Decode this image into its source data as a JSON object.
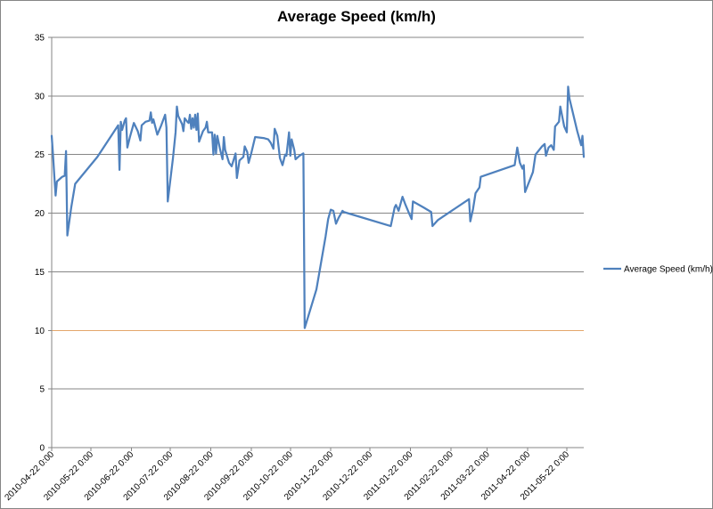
{
  "chart_data": {
    "type": "line",
    "title": "Average Speed (km/h)",
    "xlabel": "",
    "ylabel": "",
    "ylim": [
      0,
      35
    ],
    "yticks": [
      0,
      5,
      10,
      15,
      20,
      25,
      30,
      35
    ],
    "xlim": [
      "2010-04-22",
      "2011-06-04"
    ],
    "xtick_labels": [
      "2010-04-22 0:00",
      "2010-05-22 0:00",
      "2010-06-22 0:00",
      "2010-07-22 0:00",
      "2010-08-22 0:00",
      "2010-09-22 0:00",
      "2010-10-22 0:00",
      "2010-11-22 0:00",
      "2010-12-22 0:00",
      "2011-01-22 0:00",
      "2011-02-22 0:00",
      "2011-03-22 0:00",
      "2011-04-22 0:00",
      "2011-05-22 0:00"
    ],
    "xtick_dates": [
      "2010-04-22",
      "2010-05-22",
      "2010-06-22",
      "2010-07-22",
      "2010-08-22",
      "2010-09-22",
      "2010-10-22",
      "2010-11-22",
      "2010-12-22",
      "2011-01-22",
      "2011-02-22",
      "2011-03-22",
      "2011-04-22",
      "2011-05-22"
    ],
    "highlight_line": {
      "y": 10,
      "color": "#e4a66b"
    },
    "grid": true,
    "legend": "right",
    "series": [
      {
        "name": "Average Speed (km/h)",
        "color": "#4f81bd",
        "points": [
          [
            "2010-04-22",
            26.6
          ],
          [
            "2010-04-23",
            25.0
          ],
          [
            "2010-04-24",
            23.2
          ],
          [
            "2010-04-25",
            21.5
          ],
          [
            "2010-04-26",
            22.7
          ],
          [
            "2010-04-28",
            22.9
          ],
          [
            "2010-04-30",
            23.1
          ],
          [
            "2010-05-02",
            23.2
          ],
          [
            "2010-05-03",
            25.3
          ],
          [
            "2010-05-04",
            18.1
          ],
          [
            "2010-05-07",
            20.5
          ],
          [
            "2010-05-10",
            22.5
          ],
          [
            "2010-05-27",
            24.8
          ],
          [
            "2010-06-12",
            27.5
          ],
          [
            "2010-06-13",
            23.7
          ],
          [
            "2010-06-14",
            27.8
          ],
          [
            "2010-06-15",
            27.1
          ],
          [
            "2010-06-17",
            27.9
          ],
          [
            "2010-06-18",
            28.1
          ],
          [
            "2010-06-19",
            25.6
          ],
          [
            "2010-06-21",
            26.5
          ],
          [
            "2010-06-24",
            27.7
          ],
          [
            "2010-06-27",
            27.0
          ],
          [
            "2010-06-29",
            26.2
          ],
          [
            "2010-06-30",
            27.5
          ],
          [
            "2010-07-03",
            27.8
          ],
          [
            "2010-07-06",
            27.9
          ],
          [
            "2010-07-07",
            28.6
          ],
          [
            "2010-07-08",
            27.7
          ],
          [
            "2010-07-09",
            28.0
          ],
          [
            "2010-07-12",
            26.7
          ],
          [
            "2010-07-15",
            27.5
          ],
          [
            "2010-07-18",
            28.4
          ],
          [
            "2010-07-19",
            27.3
          ],
          [
            "2010-07-20",
            21.0
          ],
          [
            "2010-07-24",
            24.7
          ],
          [
            "2010-07-26",
            26.9
          ],
          [
            "2010-07-27",
            29.1
          ],
          [
            "2010-07-28",
            28.3
          ],
          [
            "2010-07-31",
            27.6
          ],
          [
            "2010-08-01",
            27.0
          ],
          [
            "2010-08-02",
            28.1
          ],
          [
            "2010-08-04",
            27.8
          ],
          [
            "2010-08-05",
            27.7
          ],
          [
            "2010-08-06",
            28.4
          ],
          [
            "2010-08-07",
            27.2
          ],
          [
            "2010-08-08",
            28.1
          ],
          [
            "2010-08-09",
            27.3
          ],
          [
            "2010-08-10",
            28.4
          ],
          [
            "2010-08-11",
            27.1
          ],
          [
            "2010-08-12",
            28.5
          ],
          [
            "2010-08-13",
            26.1
          ],
          [
            "2010-08-16",
            27.0
          ],
          [
            "2010-08-18",
            27.3
          ],
          [
            "2010-08-19",
            27.8
          ],
          [
            "2010-08-20",
            26.9
          ],
          [
            "2010-08-23",
            26.9
          ],
          [
            "2010-08-24",
            25.0
          ],
          [
            "2010-08-25",
            26.7
          ],
          [
            "2010-08-26",
            25.1
          ],
          [
            "2010-08-27",
            26.6
          ],
          [
            "2010-08-29",
            25.5
          ],
          [
            "2010-08-31",
            24.6
          ],
          [
            "2010-09-01",
            26.5
          ],
          [
            "2010-09-02",
            25.4
          ],
          [
            "2010-09-05",
            24.3
          ],
          [
            "2010-09-07",
            24.0
          ],
          [
            "2010-09-10",
            25.1
          ],
          [
            "2010-09-11",
            23.0
          ],
          [
            "2010-09-13",
            24.5
          ],
          [
            "2010-09-16",
            24.8
          ],
          [
            "2010-09-17",
            25.7
          ],
          [
            "2010-09-19",
            25.2
          ],
          [
            "2010-09-20",
            24.3
          ],
          [
            "2010-09-22",
            25.1
          ],
          [
            "2010-09-25",
            26.5
          ],
          [
            "2010-10-02",
            26.4
          ],
          [
            "2010-10-05",
            26.3
          ],
          [
            "2010-10-07",
            26.0
          ],
          [
            "2010-10-09",
            25.5
          ],
          [
            "2010-10-10",
            27.2
          ],
          [
            "2010-10-12",
            26.6
          ],
          [
            "2010-10-14",
            24.7
          ],
          [
            "2010-10-16",
            24.1
          ],
          [
            "2010-10-18",
            25.0
          ],
          [
            "2010-10-19",
            24.9
          ],
          [
            "2010-10-21",
            26.9
          ],
          [
            "2010-10-22",
            24.9
          ],
          [
            "2010-10-23",
            26.3
          ],
          [
            "2010-10-25",
            25.4
          ],
          [
            "2010-10-26",
            24.6
          ],
          [
            "2010-10-29",
            24.9
          ],
          [
            "2010-11-01",
            25.1
          ],
          [
            "2010-11-02",
            10.2
          ],
          [
            "2010-11-11",
            13.5
          ],
          [
            "2010-11-18",
            18.0
          ],
          [
            "2010-11-20",
            19.5
          ],
          [
            "2010-11-22",
            20.3
          ],
          [
            "2010-11-24",
            20.2
          ],
          [
            "2010-11-26",
            19.1
          ],
          [
            "2010-11-28",
            19.6
          ],
          [
            "2010-12-01",
            20.2
          ],
          [
            "2010-12-02",
            20.1
          ],
          [
            "2011-01-07",
            18.9
          ],
          [
            "2011-01-10",
            20.5
          ],
          [
            "2011-01-11",
            20.7
          ],
          [
            "2011-01-13",
            20.2
          ],
          [
            "2011-01-16",
            21.4
          ],
          [
            "2011-01-18",
            20.8
          ],
          [
            "2011-01-21",
            20.0
          ],
          [
            "2011-01-23",
            19.5
          ],
          [
            "2011-01-24",
            21.0
          ],
          [
            "2011-02-01",
            20.5
          ],
          [
            "2011-02-07",
            20.1
          ],
          [
            "2011-02-08",
            18.9
          ],
          [
            "2011-02-12",
            19.4
          ],
          [
            "2011-03-08",
            21.2
          ],
          [
            "2011-03-09",
            19.3
          ],
          [
            "2011-03-11",
            20.3
          ],
          [
            "2011-03-13",
            21.7
          ],
          [
            "2011-03-16",
            22.2
          ],
          [
            "2011-03-17",
            23.1
          ],
          [
            "2011-04-12",
            24.1
          ],
          [
            "2011-04-14",
            25.6
          ],
          [
            "2011-04-16",
            24.3
          ],
          [
            "2011-04-18",
            23.8
          ],
          [
            "2011-04-19",
            24.1
          ],
          [
            "2011-04-20",
            21.8
          ],
          [
            "2011-04-26",
            23.5
          ],
          [
            "2011-04-28",
            25.0
          ],
          [
            "2011-05-03",
            25.7
          ],
          [
            "2011-05-05",
            25.9
          ],
          [
            "2011-05-06",
            24.9
          ],
          [
            "2011-05-08",
            25.6
          ],
          [
            "2011-05-10",
            25.8
          ],
          [
            "2011-05-12",
            25.4
          ],
          [
            "2011-05-13",
            27.4
          ],
          [
            "2011-05-16",
            27.8
          ],
          [
            "2011-05-17",
            29.1
          ],
          [
            "2011-05-20",
            27.4
          ],
          [
            "2011-05-22",
            26.9
          ],
          [
            "2011-05-23",
            30.8
          ],
          [
            "2011-05-24",
            29.8
          ],
          [
            "2011-05-30",
            27.0
          ],
          [
            "2011-06-02",
            25.8
          ],
          [
            "2011-06-03",
            26.6
          ],
          [
            "2011-06-04",
            24.8
          ]
        ]
      }
    ]
  }
}
